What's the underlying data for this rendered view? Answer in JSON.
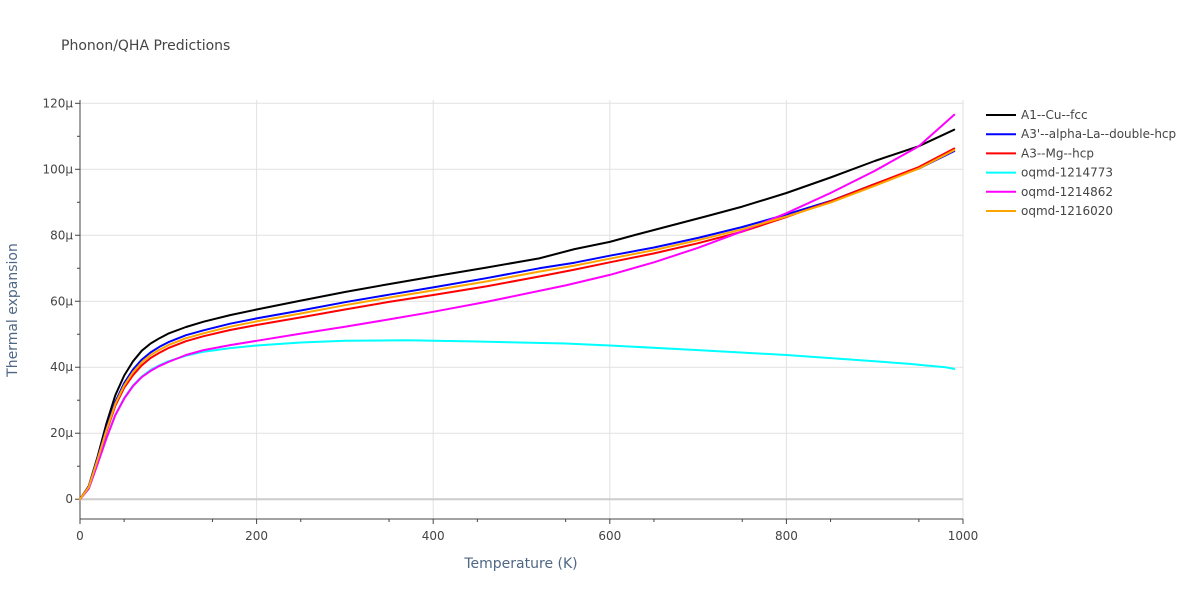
{
  "chart_data": {
    "type": "line",
    "title": "Phonon/QHA Predictions",
    "xlabel": "Temperature (K)",
    "ylabel": "Thermal expansion",
    "xlim": [
      0,
      1000
    ],
    "ylim": [
      -6e-06,
      0.000121
    ],
    "xticks": [
      0,
      200,
      400,
      600,
      800,
      1000
    ],
    "xtick_labels": [
      "0",
      "200",
      "400",
      "600",
      "800",
      "1000"
    ],
    "yticks": [
      0,
      2e-05,
      4e-05,
      6e-05,
      8e-05,
      0.0001,
      0.00012
    ],
    "ytick_labels": [
      "0",
      "20μ",
      "40μ",
      "60μ",
      "80μ",
      "100μ",
      "120μ"
    ],
    "grid": true,
    "legend_position": "top-right outside",
    "series": [
      {
        "name": "A1--Cu--fcc",
        "color": "#000000",
        "x": [
          0,
          10,
          20,
          30,
          40,
          50,
          60,
          70,
          80,
          90,
          100,
          120,
          140,
          170,
          200,
          250,
          300,
          350,
          400,
          460,
          520,
          560,
          600,
          630,
          670,
          710,
          750,
          800,
          850,
          900,
          950,
          990
        ],
        "y": [
          0,
          4e-06,
          1.3e-05,
          2.3e-05,
          3.15e-05,
          3.75e-05,
          4.18e-05,
          4.5e-05,
          4.72e-05,
          4.88e-05,
          5.02e-05,
          5.22e-05,
          5.38e-05,
          5.58e-05,
          5.75e-05,
          6.02e-05,
          6.28e-05,
          6.52e-05,
          6.75e-05,
          7.02e-05,
          7.3e-05,
          7.58e-05,
          7.8e-05,
          8.02e-05,
          8.3e-05,
          8.58e-05,
          8.87e-05,
          9.28e-05,
          9.75e-05,
          0.0001025,
          0.000107,
          0.000112
        ]
      },
      {
        "name": "A3'--alpha-La--double-hcp",
        "color": "#0000ff",
        "x": [
          0,
          10,
          20,
          30,
          40,
          50,
          60,
          70,
          80,
          90,
          100,
          120,
          140,
          170,
          200,
          250,
          300,
          350,
          400,
          460,
          520,
          560,
          600,
          650,
          700,
          750,
          800,
          850,
          900,
          950,
          990
        ],
        "y": [
          0,
          3.8e-06,
          1.25e-05,
          2.15e-05,
          2.95e-05,
          3.52e-05,
          3.93e-05,
          4.23e-05,
          4.45e-05,
          4.62e-05,
          4.76e-05,
          4.97e-05,
          5.12e-05,
          5.32e-05,
          5.48e-05,
          5.72e-05,
          5.97e-05,
          6.2e-05,
          6.42e-05,
          6.7e-05,
          7e-05,
          7.17e-05,
          7.38e-05,
          7.63e-05,
          7.92e-05,
          8.25e-05,
          8.63e-05,
          9.04e-05,
          9.55e-05,
          0.0001002,
          0.0001055
        ]
      },
      {
        "name": "A3--Mg--hcp",
        "color": "#ff0000",
        "x": [
          0,
          10,
          20,
          30,
          40,
          50,
          60,
          70,
          80,
          90,
          100,
          120,
          140,
          170,
          200,
          250,
          300,
          350,
          400,
          460,
          520,
          560,
          600,
          650,
          700,
          750,
          800,
          850,
          900,
          950,
          990
        ],
        "y": [
          0,
          3.6e-06,
          1.2e-05,
          2.05e-05,
          2.83e-05,
          3.38e-05,
          3.76e-05,
          4.06e-05,
          4.28e-05,
          4.44e-05,
          4.58e-05,
          4.79e-05,
          4.94e-05,
          5.13e-05,
          5.28e-05,
          5.51e-05,
          5.75e-05,
          5.98e-05,
          6.19e-05,
          6.45e-05,
          6.75e-05,
          6.96e-05,
          7.18e-05,
          7.45e-05,
          7.76e-05,
          8.11e-05,
          8.55e-05,
          9.03e-05,
          9.55e-05,
          0.0001007,
          0.0001063
        ]
      },
      {
        "name": "oqmd-1214773",
        "color": "#00ffff",
        "x": [
          0,
          10,
          20,
          30,
          40,
          50,
          60,
          70,
          80,
          90,
          100,
          120,
          140,
          170,
          200,
          250,
          300,
          370,
          450,
          550,
          600,
          700,
          800,
          900,
          940,
          960,
          980,
          990
        ],
        "y": [
          0,
          3.2e-06,
          1.08e-05,
          1.85e-05,
          2.55e-05,
          3.07e-05,
          3.45e-05,
          3.72e-05,
          3.92e-05,
          4.06e-05,
          4.18e-05,
          4.35e-05,
          4.47e-05,
          4.58e-05,
          4.66e-05,
          4.75e-05,
          4.8e-05,
          4.82e-05,
          4.78e-05,
          4.72e-05,
          4.66e-05,
          4.52e-05,
          4.37e-05,
          4.18e-05,
          4.1e-05,
          4.05e-05,
          4e-05,
          3.95e-05
        ]
      },
      {
        "name": "oqmd-1214862",
        "color": "#ff00ff",
        "x": [
          0,
          10,
          20,
          30,
          40,
          50,
          60,
          70,
          80,
          90,
          100,
          120,
          140,
          170,
          200,
          250,
          300,
          350,
          400,
          460,
          550,
          600,
          650,
          700,
          750,
          800,
          850,
          900,
          950,
          990
        ],
        "y": [
          0,
          3.2e-06,
          1.08e-05,
          1.85e-05,
          2.55e-05,
          3.05e-05,
          3.43e-05,
          3.7e-05,
          3.89e-05,
          4.04e-05,
          4.16e-05,
          4.37e-05,
          4.52e-05,
          4.67e-05,
          4.8e-05,
          5.02e-05,
          5.23e-05,
          5.45e-05,
          5.68e-05,
          5.98e-05,
          6.48e-05,
          6.8e-05,
          7.18e-05,
          7.62e-05,
          8.12e-05,
          8.67e-05,
          9.28e-05,
          9.95e-05,
          0.000107,
          0.0001165
        ]
      },
      {
        "name": "oqmd-1216020",
        "color": "#ffa500",
        "x": [
          0,
          10,
          20,
          30,
          40,
          50,
          60,
          70,
          80,
          90,
          100,
          120,
          140,
          170,
          200,
          250,
          300,
          350,
          400,
          460,
          520,
          560,
          600,
          650,
          700,
          750,
          800,
          850,
          900,
          950,
          990
        ],
        "y": [
          0,
          3.7e-06,
          1.22e-05,
          2.1e-05,
          2.89e-05,
          3.45e-05,
          3.85e-05,
          4.15e-05,
          4.37e-05,
          4.53e-05,
          4.67e-05,
          4.88e-05,
          5.03e-05,
          5.23e-05,
          5.39e-05,
          5.63e-05,
          5.88e-05,
          6.11e-05,
          6.33e-05,
          6.6e-05,
          6.9e-05,
          7.08e-05,
          7.29e-05,
          7.55e-05,
          7.85e-05,
          8.18e-05,
          8.57e-05,
          8.99e-05,
          9.5e-05,
          0.0001002,
          0.0001058
        ]
      }
    ]
  }
}
